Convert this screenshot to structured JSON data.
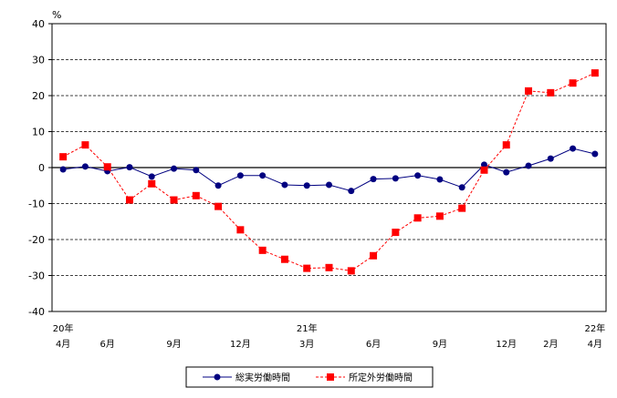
{
  "chart_data": {
    "type": "line",
    "y_unit": "%",
    "ylim": [
      -40,
      40
    ],
    "yticks": [
      40,
      30,
      20,
      10,
      0,
      -10,
      -20,
      -30,
      -40
    ],
    "x_labels": [
      {
        "i": 0,
        "top": "20年",
        "bottom": "4月"
      },
      {
        "i": 2,
        "top": "",
        "bottom": "6月"
      },
      {
        "i": 5,
        "top": "",
        "bottom": "9月"
      },
      {
        "i": 8,
        "top": "",
        "bottom": "12月"
      },
      {
        "i": 11,
        "top": "21年",
        "bottom": "3月"
      },
      {
        "i": 14,
        "top": "",
        "bottom": "6月"
      },
      {
        "i": 17,
        "top": "",
        "bottom": "9月"
      },
      {
        "i": 20,
        "top": "",
        "bottom": "12月"
      },
      {
        "i": 22,
        "top": "",
        "bottom": "2月"
      },
      {
        "i": 24,
        "top": "22年",
        "bottom": "4月"
      }
    ],
    "series": [
      {
        "name": "総実労働時間",
        "color": "#000080",
        "marker": "circle",
        "line": "solid",
        "values": [
          -0.5,
          0.3,
          -1.0,
          0.1,
          -2.5,
          -0.3,
          -0.7,
          -5.0,
          -2.2,
          -2.2,
          -4.8,
          -5.0,
          -4.8,
          -6.5,
          -3.2,
          -3.0,
          -2.2,
          -3.3,
          -5.5,
          0.8,
          -1.3,
          0.5,
          2.5,
          5.3,
          3.8
        ]
      },
      {
        "name": "所定外労働時間",
        "color": "#ff0000",
        "marker": "square",
        "line": "dashed",
        "values": [
          3.0,
          6.3,
          0.2,
          -9.0,
          -4.5,
          -9.0,
          -7.8,
          -10.8,
          -17.3,
          -23.0,
          -25.5,
          -28.0,
          -27.8,
          -28.7,
          -24.5,
          -18.0,
          -14.0,
          -13.5,
          -11.3,
          -0.7,
          6.3,
          21.3,
          20.8,
          23.5,
          26.3
        ]
      }
    ]
  }
}
